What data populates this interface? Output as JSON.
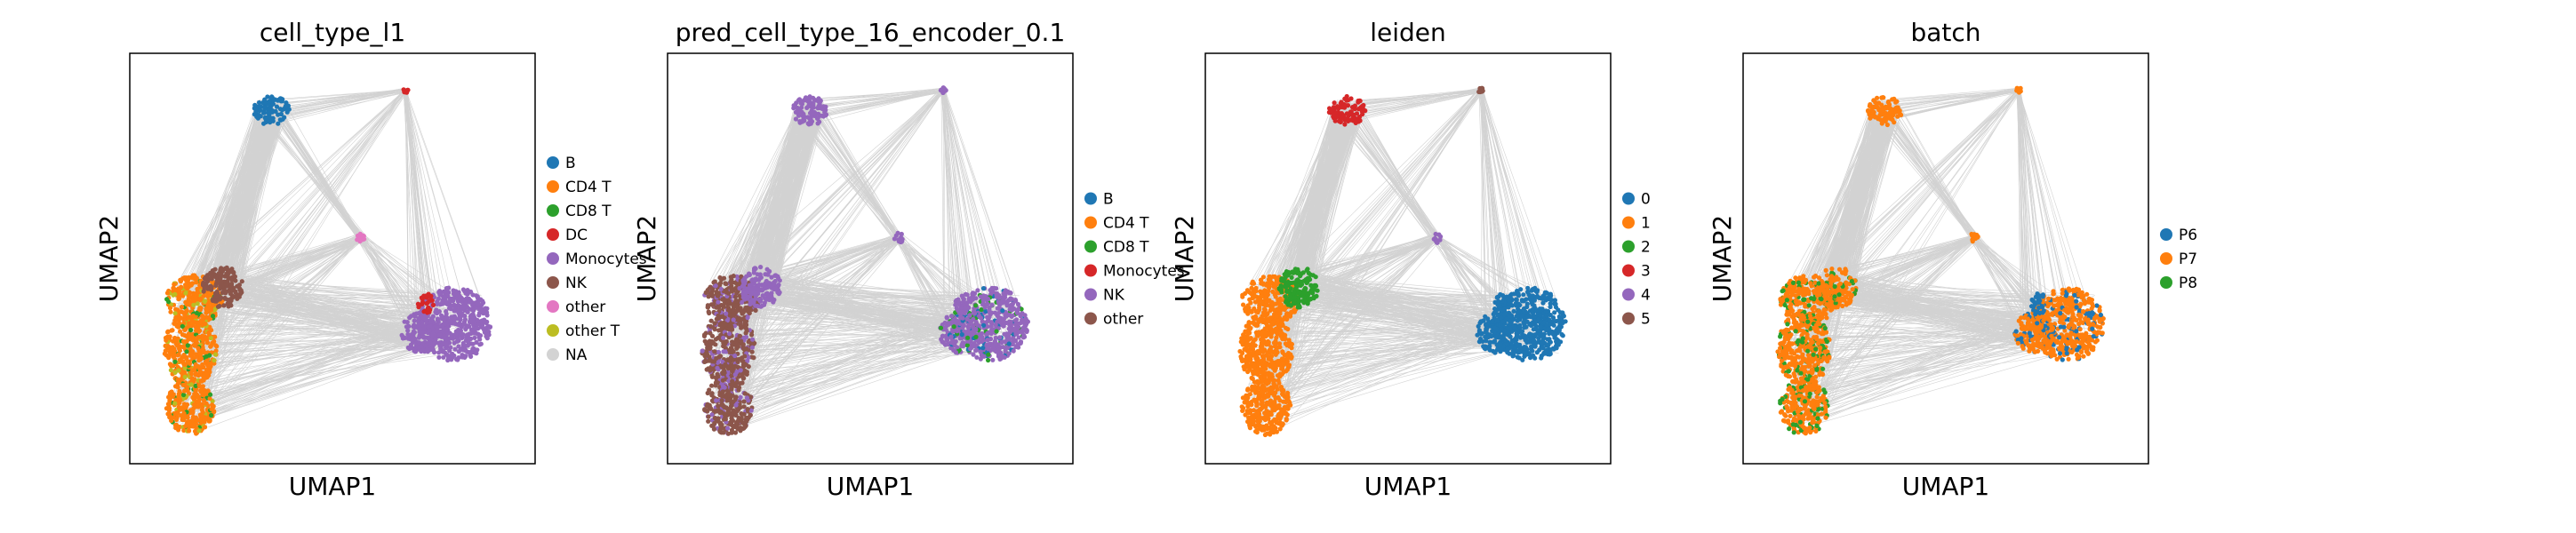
{
  "chart_data": [
    {
      "type": "scatter",
      "title": "cell_type_l1",
      "xlabel": "UMAP1",
      "ylabel": "UMAP2",
      "grid": false,
      "legend_position": "right",
      "legend": [
        {
          "label": "B",
          "color": "#1f77b4"
        },
        {
          "label": "CD4 T",
          "color": "#ff7f0e"
        },
        {
          "label": "CD8 T",
          "color": "#2ca02c"
        },
        {
          "label": "DC",
          "color": "#d62728"
        },
        {
          "label": "Monocytes",
          "color": "#9467bd"
        },
        {
          "label": "NK",
          "color": "#8c564b"
        },
        {
          "label": "other",
          "color": "#e377c2"
        },
        {
          "label": "other T",
          "color": "#bcbd22"
        },
        {
          "label": "NA",
          "color": "#d3d3d3"
        }
      ],
      "clusters": [
        {
          "name": "left-column",
          "color": "#ff7f0e",
          "mix": [
            "#2ca02c",
            "#bcbd22"
          ]
        },
        {
          "name": "top",
          "color": "#1f77b4"
        },
        {
          "name": "right",
          "color": "#9467bd"
        },
        {
          "name": "middle",
          "color": "#8c564b"
        },
        {
          "name": "center-small",
          "color": "#e377c2"
        },
        {
          "name": "top-right-small",
          "color": "#d62728"
        },
        {
          "name": "right-spike",
          "color": "#d62728"
        }
      ]
    },
    {
      "type": "scatter",
      "title": "pred_cell_type_16_encoder_0.1",
      "xlabel": "UMAP1",
      "ylabel": "UMAP2",
      "grid": false,
      "legend_position": "right",
      "legend": [
        {
          "label": "B",
          "color": "#1f77b4"
        },
        {
          "label": "CD4 T",
          "color": "#ff7f0e"
        },
        {
          "label": "CD8 T",
          "color": "#2ca02c"
        },
        {
          "label": "Monocytes",
          "color": "#d62728"
        },
        {
          "label": "NK",
          "color": "#9467bd"
        },
        {
          "label": "other",
          "color": "#8c564b"
        }
      ],
      "clusters": [
        {
          "name": "left-column",
          "color": "#8c564b",
          "mix": [
            "#9467bd"
          ]
        },
        {
          "name": "top",
          "color": "#9467bd"
        },
        {
          "name": "right",
          "color": "#9467bd",
          "mix": [
            "#2ca02c",
            "#1f77b4"
          ]
        },
        {
          "name": "middle",
          "color": "#9467bd"
        },
        {
          "name": "center-small",
          "color": "#9467bd"
        },
        {
          "name": "top-right-small",
          "color": "#9467bd"
        },
        {
          "name": "right-spike",
          "color": "#9467bd"
        }
      ]
    },
    {
      "type": "scatter",
      "title": "leiden",
      "xlabel": "UMAP1",
      "ylabel": "UMAP2",
      "grid": false,
      "legend_position": "right",
      "legend": [
        {
          "label": "0",
          "color": "#1f77b4"
        },
        {
          "label": "1",
          "color": "#ff7f0e"
        },
        {
          "label": "2",
          "color": "#2ca02c"
        },
        {
          "label": "3",
          "color": "#d62728"
        },
        {
          "label": "4",
          "color": "#9467bd"
        },
        {
          "label": "5",
          "color": "#8c564b"
        }
      ],
      "clusters": [
        {
          "name": "left-column",
          "color": "#ff7f0e"
        },
        {
          "name": "top",
          "color": "#d62728"
        },
        {
          "name": "right",
          "color": "#1f77b4"
        },
        {
          "name": "middle",
          "color": "#2ca02c"
        },
        {
          "name": "center-small",
          "color": "#9467bd"
        },
        {
          "name": "top-right-small",
          "color": "#8c564b"
        },
        {
          "name": "right-spike",
          "color": "#1f77b4"
        }
      ]
    },
    {
      "type": "scatter",
      "title": "batch",
      "xlabel": "UMAP1",
      "ylabel": "UMAP2",
      "grid": false,
      "legend_position": "right",
      "legend": [
        {
          "label": "P6",
          "color": "#1f77b4"
        },
        {
          "label": "P7",
          "color": "#ff7f0e"
        },
        {
          "label": "P8",
          "color": "#2ca02c"
        }
      ],
      "clusters": [
        {
          "name": "left-column",
          "color": "#ff7f0e",
          "mix": [
            "#2ca02c"
          ]
        },
        {
          "name": "top",
          "color": "#ff7f0e"
        },
        {
          "name": "right",
          "color": "#ff7f0e",
          "mix": [
            "#1f77b4"
          ]
        },
        {
          "name": "middle",
          "color": "#ff7f0e",
          "mix": [
            "#2ca02c"
          ]
        },
        {
          "name": "center-small",
          "color": "#ff7f0e"
        },
        {
          "name": "top-right-small",
          "color": "#ff7f0e"
        },
        {
          "name": "right-spike",
          "color": "#1f77b4"
        }
      ]
    }
  ],
  "edge_color": "#808080"
}
